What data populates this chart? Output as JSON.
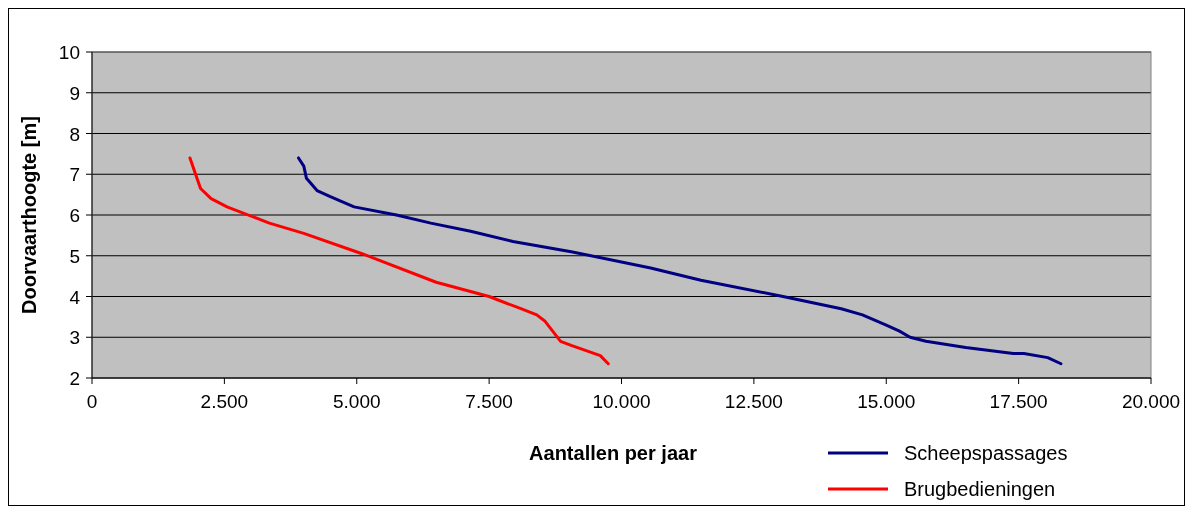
{
  "chart_data": {
    "type": "line",
    "xlabel": "Aantallen per jaar",
    "ylabel": "Doorvaarthoogte [m]",
    "xlim": [
      0,
      20000
    ],
    "ylim": [
      2,
      10
    ],
    "xticks": [
      0,
      {
        "value": 2500,
        "label": "2.500"
      },
      {
        "value": 5000,
        "label": "5.000"
      },
      {
        "value": 7500,
        "label": "7.500"
      },
      {
        "value": 10000,
        "label": "10.000"
      },
      {
        "value": 12500,
        "label": "12.500"
      },
      {
        "value": 15000,
        "label": "15.000"
      },
      {
        "value": 17500,
        "label": "17.500"
      },
      {
        "value": 20000,
        "label": "20.000"
      }
    ],
    "yticks": [
      2,
      3,
      4,
      5,
      6,
      7,
      8,
      9,
      10
    ],
    "grid": "y",
    "legend": "bottom right",
    "marker": "none",
    "line_style": "solid",
    "series": [
      {
        "name": "Scheepspassages",
        "color": "#000080",
        "x": [
          3900,
          4000,
          4050,
          4250,
          4500,
          4950,
          5750,
          6400,
          7150,
          7950,
          9050,
          10550,
          11500,
          13050,
          14150,
          14550,
          15000,
          15250,
          15450,
          15750,
          16500,
          17400,
          17600,
          18050,
          18300
        ],
        "values": [
          7.4,
          7.2,
          6.9,
          6.6,
          6.45,
          6.2,
          6,
          5.8,
          5.6,
          5.35,
          5.1,
          4.7,
          4.4,
          4,
          3.7,
          3.55,
          3.3,
          3.15,
          3,
          2.9,
          2.75,
          2.6,
          2.6,
          2.5,
          2.35
        ]
      },
      {
        "name": "Brugbedieningen",
        "color": "#ff0000",
        "x": [
          1850,
          2050,
          2250,
          2550,
          3350,
          4000,
          5100,
          6500,
          7500,
          8100,
          8400,
          8550,
          8850,
          9050,
          9600,
          9750
        ],
        "values": [
          7.4,
          6.65,
          6.4,
          6.2,
          5.8,
          5.55,
          5.05,
          4.35,
          4,
          3.7,
          3.55,
          3.4,
          2.9,
          2.8,
          2.55,
          2.35
        ]
      }
    ]
  }
}
